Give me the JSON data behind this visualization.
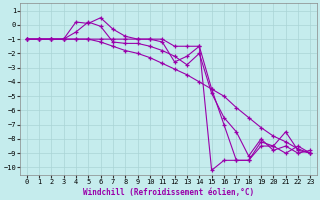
{
  "xlabel": "Windchill (Refroidissement éolien,°C)",
  "xlim": [
    -0.5,
    23.5
  ],
  "ylim": [
    -10.5,
    1.5
  ],
  "xticks": [
    0,
    1,
    2,
    3,
    4,
    5,
    6,
    7,
    8,
    9,
    10,
    11,
    12,
    13,
    14,
    15,
    16,
    17,
    18,
    19,
    20,
    21,
    22,
    23
  ],
  "yticks": [
    1,
    0,
    -1,
    -2,
    -3,
    -4,
    -5,
    -6,
    -7,
    -8,
    -9,
    -10
  ],
  "background_color": "#c5eced",
  "grid_color": "#aad4d6",
  "line_color": "#9900aa",
  "series": {
    "x": [
      0,
      1,
      2,
      3,
      4,
      5,
      6,
      7,
      8,
      9,
      10,
      11,
      12,
      13,
      14,
      15,
      16,
      17,
      18,
      19,
      20,
      21,
      22,
      23
    ],
    "line1": [
      -1,
      -1,
      -1,
      -1,
      -1,
      -1,
      -1,
      -1,
      -1,
      -1,
      -1,
      -1,
      -1.5,
      -1.5,
      -1.5,
      -4.5,
      -7.0,
      -9.5,
      -9.5,
      -8.5,
      -8.5,
      -9.0,
      -8.5,
      -9.0
    ],
    "line2": [
      -1,
      -1,
      -1,
      -1,
      0.2,
      0.1,
      0.5,
      -0.3,
      -0.8,
      -1.0,
      -1.0,
      -1.2,
      -2.6,
      -2.2,
      -1.5,
      -10.2,
      -9.5,
      -9.5,
      -9.5,
      -8.2,
      -8.5,
      -7.5,
      -8.8,
      -9.0
    ],
    "line3": [
      -1,
      -1,
      -1,
      -1,
      -0.5,
      0.2,
      -0.1,
      -1.2,
      -1.3,
      -1.3,
      -1.5,
      -1.8,
      -2.2,
      -2.8,
      -2.0,
      -4.8,
      -6.5,
      -7.5,
      -9.2,
      -8.0,
      -8.8,
      -8.5,
      -9.0,
      -8.8
    ],
    "line4": [
      -1,
      -1,
      -1,
      -1,
      -1.0,
      -1.0,
      -1.2,
      -1.5,
      -1.8,
      -2.0,
      -2.3,
      -2.7,
      -3.1,
      -3.5,
      -4.0,
      -4.5,
      -5.0,
      -5.8,
      -6.5,
      -7.2,
      -7.8,
      -8.2,
      -8.7,
      -9.0
    ]
  }
}
